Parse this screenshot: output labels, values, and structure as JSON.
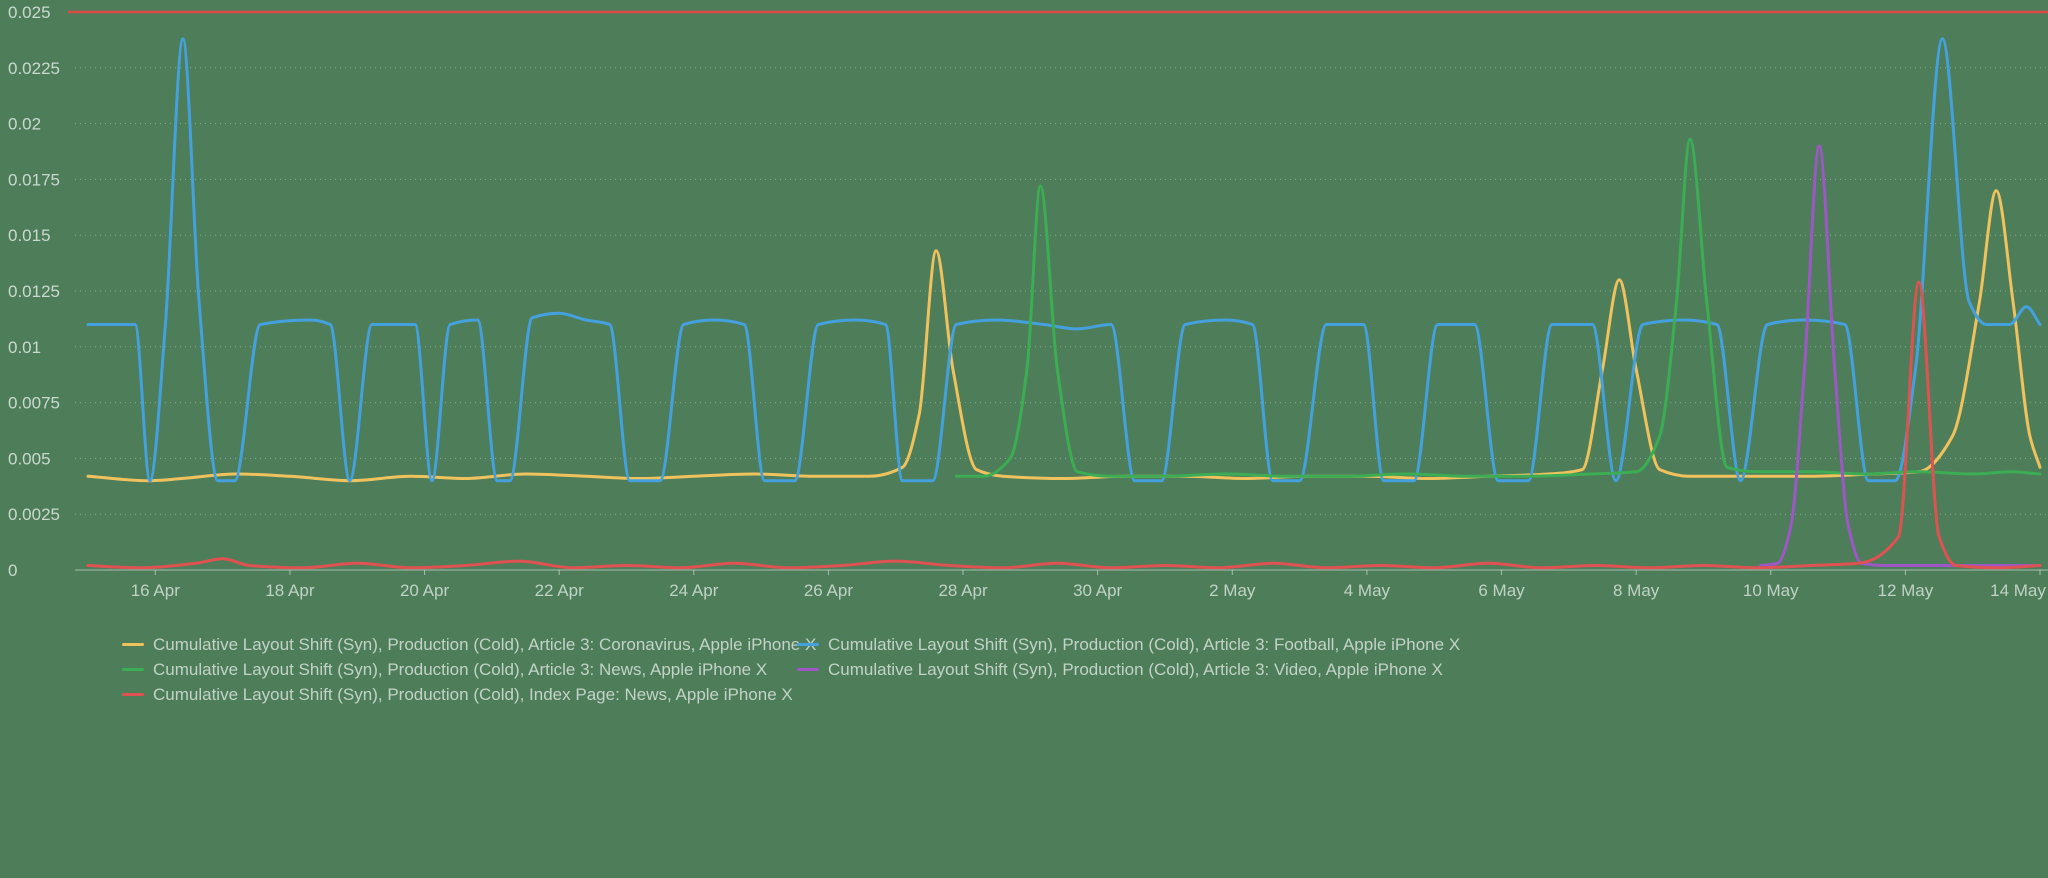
{
  "page": {
    "background_color": "#4e7d5a"
  },
  "chart_data": {
    "type": "line",
    "metric": "Cumulative Layout Shift (Syn)",
    "x_axis": {
      "unit": "date",
      "domain_days": [
        0,
        29
      ],
      "ticks": [
        {
          "day": 1,
          "label": "16 Apr"
        },
        {
          "day": 3,
          "label": "18 Apr"
        },
        {
          "day": 5,
          "label": "20 Apr"
        },
        {
          "day": 7,
          "label": "22 Apr"
        },
        {
          "day": 9,
          "label": "24 Apr"
        },
        {
          "day": 11,
          "label": "26 Apr"
        },
        {
          "day": 13,
          "label": "28 Apr"
        },
        {
          "day": 15,
          "label": "30 Apr"
        },
        {
          "day": 17,
          "label": "2 May"
        },
        {
          "day": 19,
          "label": "4 May"
        },
        {
          "day": 21,
          "label": "6 May"
        },
        {
          "day": 23,
          "label": "8 May"
        },
        {
          "day": 25,
          "label": "10 May"
        },
        {
          "day": 27,
          "label": "12 May"
        },
        {
          "day": 29,
          "label": "14 May"
        }
      ]
    },
    "y_axis": {
      "range": [
        0,
        0.025
      ],
      "grid": true,
      "ticks": [
        {
          "value": 0,
          "label": "0"
        },
        {
          "value": 0.0025,
          "label": "0.0025"
        },
        {
          "value": 0.005,
          "label": "0.005"
        },
        {
          "value": 0.0075,
          "label": "0.0075"
        },
        {
          "value": 0.01,
          "label": "0.01"
        },
        {
          "value": 0.0125,
          "label": "0.0125"
        },
        {
          "value": 0.015,
          "label": "0.015"
        },
        {
          "value": 0.0175,
          "label": "0.0175"
        },
        {
          "value": 0.02,
          "label": "0.02"
        },
        {
          "value": 0.0225,
          "label": "0.0225"
        },
        {
          "value": 0.025,
          "label": "0.025"
        }
      ]
    },
    "threshold_line": {
      "value": 0.025,
      "color": "#dc4a45"
    },
    "legend_position": "bottom",
    "series": [
      {
        "key": "article3-coronavirus",
        "name": "Cumulative Layout Shift (Syn), Production (Cold), Article 3: Coronavirus, Apple iPhone X",
        "color": "#f0c25e",
        "points": [
          [
            0,
            0.0042
          ],
          [
            0.9,
            0.004
          ],
          [
            1.4,
            0.0041
          ],
          [
            2.2,
            0.0043
          ],
          [
            3,
            0.0042
          ],
          [
            3.9,
            0.004
          ],
          [
            4.8,
            0.0042
          ],
          [
            5.6,
            0.0041
          ],
          [
            6.5,
            0.0043
          ],
          [
            7.4,
            0.0042
          ],
          [
            8.2,
            0.0041
          ],
          [
            9,
            0.0042
          ],
          [
            9.9,
            0.0043
          ],
          [
            10.8,
            0.0042
          ],
          [
            11.6,
            0.0042
          ],
          [
            12.1,
            0.0046
          ],
          [
            12.35,
            0.007
          ],
          [
            12.6,
            0.0143
          ],
          [
            12.85,
            0.009
          ],
          [
            13.2,
            0.0045
          ],
          [
            13.6,
            0.0042
          ],
          [
            14.5,
            0.0041
          ],
          [
            15.4,
            0.0042
          ],
          [
            16.3,
            0.0042
          ],
          [
            17.2,
            0.0041
          ],
          [
            18.1,
            0.0042
          ],
          [
            19,
            0.0042
          ],
          [
            19.9,
            0.0041
          ],
          [
            20.8,
            0.0042
          ],
          [
            21.7,
            0.0043
          ],
          [
            22.2,
            0.0045
          ],
          [
            22.5,
            0.009
          ],
          [
            22.75,
            0.013
          ],
          [
            23,
            0.009
          ],
          [
            23.35,
            0.0045
          ],
          [
            23.8,
            0.0042
          ],
          [
            24.7,
            0.0042
          ],
          [
            25.6,
            0.0042
          ],
          [
            26.5,
            0.0043
          ],
          [
            27.2,
            0.0044
          ],
          [
            27.7,
            0.006
          ],
          [
            28.1,
            0.012
          ],
          [
            28.35,
            0.017
          ],
          [
            28.6,
            0.012
          ],
          [
            28.85,
            0.006
          ],
          [
            29,
            0.0046
          ]
        ]
      },
      {
        "key": "article3-football",
        "name": "Cumulative Layout Shift (Syn), Production (Cold), Article 3: Football, Apple iPhone X",
        "color": "#45a1dd",
        "points": [
          [
            0,
            0.011
          ],
          [
            0.7,
            0.011
          ],
          [
            0.92,
            0.004
          ],
          [
            1.15,
            0.011
          ],
          [
            1.41,
            0.0238
          ],
          [
            1.65,
            0.012
          ],
          [
            1.93,
            0.004
          ],
          [
            2.18,
            0.004
          ],
          [
            2.56,
            0.011
          ],
          [
            3.3,
            0.0112
          ],
          [
            3.6,
            0.011
          ],
          [
            3.89,
            0.004
          ],
          [
            4.22,
            0.011
          ],
          [
            4.86,
            0.011
          ],
          [
            5.11,
            0.004
          ],
          [
            5.38,
            0.011
          ],
          [
            5.79,
            0.0112
          ],
          [
            6.08,
            0.004
          ],
          [
            6.27,
            0.004
          ],
          [
            6.6,
            0.0113
          ],
          [
            7,
            0.0115
          ],
          [
            7.4,
            0.0112
          ],
          [
            7.75,
            0.011
          ],
          [
            8.05,
            0.004
          ],
          [
            8.5,
            0.004
          ],
          [
            8.85,
            0.011
          ],
          [
            9.3,
            0.0112
          ],
          [
            9.75,
            0.011
          ],
          [
            10.05,
            0.004
          ],
          [
            10.5,
            0.004
          ],
          [
            10.85,
            0.011
          ],
          [
            11.4,
            0.0112
          ],
          [
            11.85,
            0.011
          ],
          [
            12.1,
            0.004
          ],
          [
            12.55,
            0.004
          ],
          [
            12.9,
            0.011
          ],
          [
            13.5,
            0.0112
          ],
          [
            14.2,
            0.011
          ],
          [
            14.7,
            0.0108
          ],
          [
            15.2,
            0.011
          ],
          [
            15.55,
            0.004
          ],
          [
            15.95,
            0.004
          ],
          [
            16.3,
            0.011
          ],
          [
            16.9,
            0.0112
          ],
          [
            17.3,
            0.011
          ],
          [
            17.6,
            0.004
          ],
          [
            18,
            0.004
          ],
          [
            18.4,
            0.011
          ],
          [
            18.95,
            0.011
          ],
          [
            19.25,
            0.004
          ],
          [
            19.7,
            0.004
          ],
          [
            20.05,
            0.011
          ],
          [
            20.6,
            0.011
          ],
          [
            20.95,
            0.004
          ],
          [
            21.4,
            0.004
          ],
          [
            21.75,
            0.011
          ],
          [
            22.35,
            0.011
          ],
          [
            22.7,
            0.004
          ],
          [
            23.1,
            0.011
          ],
          [
            23.7,
            0.0112
          ],
          [
            24.2,
            0.011
          ],
          [
            24.55,
            0.004
          ],
          [
            24.95,
            0.011
          ],
          [
            25.5,
            0.0112
          ],
          [
            26.1,
            0.011
          ],
          [
            26.45,
            0.004
          ],
          [
            26.85,
            0.004
          ],
          [
            27.15,
            0.009
          ],
          [
            27.55,
            0.0238
          ],
          [
            27.95,
            0.012
          ],
          [
            28.2,
            0.011
          ],
          [
            28.55,
            0.011
          ],
          [
            28.8,
            0.0118
          ],
          [
            29,
            0.011
          ]
        ]
      },
      {
        "key": "article3-news",
        "name": "Cumulative Layout Shift (Syn), Production (Cold), Article 3: News, Apple iPhone X",
        "color": "#3cad54",
        "points": [
          [
            12.9,
            0.0042
          ],
          [
            13.3,
            0.0042
          ],
          [
            13.7,
            0.005
          ],
          [
            13.95,
            0.009
          ],
          [
            14.15,
            0.0172
          ],
          [
            14.4,
            0.009
          ],
          [
            14.7,
            0.0044
          ],
          [
            15.2,
            0.0042
          ],
          [
            16,
            0.0042
          ],
          [
            16.9,
            0.0043
          ],
          [
            17.8,
            0.0042
          ],
          [
            18.7,
            0.0042
          ],
          [
            19.6,
            0.0043
          ],
          [
            20.5,
            0.0042
          ],
          [
            21.4,
            0.0042
          ],
          [
            22.3,
            0.0043
          ],
          [
            23,
            0.0044
          ],
          [
            23.35,
            0.006
          ],
          [
            23.6,
            0.012
          ],
          [
            23.8,
            0.0193
          ],
          [
            24.05,
            0.012
          ],
          [
            24.35,
            0.0046
          ],
          [
            24.8,
            0.0044
          ],
          [
            25.6,
            0.0044
          ],
          [
            26.4,
            0.0043
          ],
          [
            27.2,
            0.0044
          ],
          [
            28,
            0.0043
          ],
          [
            28.6,
            0.0044
          ],
          [
            29,
            0.0043
          ]
        ]
      },
      {
        "key": "article3-video",
        "name": "Cumulative Layout Shift (Syn), Production (Cold), Article 3: Video, Apple iPhone X",
        "color": "#9d57c6",
        "points": [
          [
            24.85,
            0.0002
          ],
          [
            25.1,
            0.0003
          ],
          [
            25.3,
            0.002
          ],
          [
            25.5,
            0.009
          ],
          [
            25.72,
            0.019
          ],
          [
            25.95,
            0.009
          ],
          [
            26.15,
            0.002
          ],
          [
            26.35,
            0.0003
          ],
          [
            26.7,
            0.0002
          ],
          [
            27.4,
            0.0002
          ],
          [
            28.2,
            0.0002
          ],
          [
            29,
            0.0002
          ]
        ]
      },
      {
        "key": "index-page-news",
        "name": "Cumulative Layout Shift (Syn), Production (Cold), Index Page: News, Apple iPhone X",
        "color": "#e05252",
        "points": [
          [
            0,
            0.0002
          ],
          [
            0.8,
            0.0001
          ],
          [
            1.6,
            0.0003
          ],
          [
            2,
            0.0005
          ],
          [
            2.4,
            0.0002
          ],
          [
            3.2,
            0.0001
          ],
          [
            4,
            0.0003
          ],
          [
            4.8,
            0.0001
          ],
          [
            5.6,
            0.0002
          ],
          [
            6.4,
            0.0004
          ],
          [
            7.2,
            0.0001
          ],
          [
            8,
            0.0002
          ],
          [
            8.8,
            0.0001
          ],
          [
            9.6,
            0.0003
          ],
          [
            10.4,
            0.0001
          ],
          [
            11.2,
            0.0002
          ],
          [
            12,
            0.0004
          ],
          [
            12.8,
            0.0002
          ],
          [
            13.6,
            0.0001
          ],
          [
            14.4,
            0.0003
          ],
          [
            15.2,
            0.0001
          ],
          [
            16,
            0.0002
          ],
          [
            16.8,
            0.0001
          ],
          [
            17.6,
            0.0003
          ],
          [
            18.4,
            0.0001
          ],
          [
            19.2,
            0.0002
          ],
          [
            20,
            0.0001
          ],
          [
            20.8,
            0.0003
          ],
          [
            21.6,
            0.0001
          ],
          [
            22.4,
            0.0002
          ],
          [
            23.2,
            0.0001
          ],
          [
            24,
            0.0002
          ],
          [
            24.8,
            0.0001
          ],
          [
            25.6,
            0.0002
          ],
          [
            26.3,
            0.0003
          ],
          [
            26.9,
            0.0015
          ],
          [
            27.2,
            0.0129
          ],
          [
            27.5,
            0.0015
          ],
          [
            27.75,
            0.0002
          ],
          [
            28.4,
            0.0001
          ],
          [
            29,
            0.0002
          ]
        ]
      }
    ]
  }
}
